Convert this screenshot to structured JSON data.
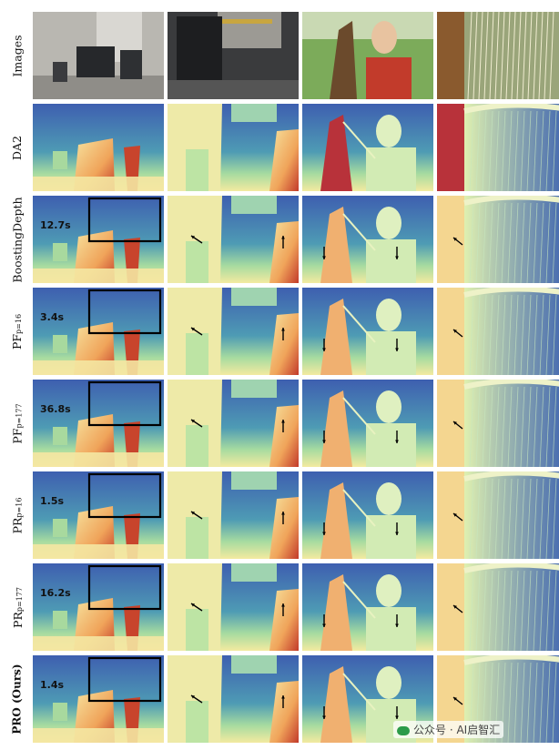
{
  "rows": [
    {
      "id": "images",
      "label": "Images",
      "sub": "",
      "time": ""
    },
    {
      "id": "da2",
      "label": "DA2",
      "sub": "",
      "time": ""
    },
    {
      "id": "boosting",
      "label": "BoostingDepth",
      "sub": "",
      "time": "12.7s"
    },
    {
      "id": "pf16",
      "label": "PF",
      "sub": "p=16",
      "time": "3.4s"
    },
    {
      "id": "pf177",
      "label": "PF",
      "sub": "p=177",
      "time": "36.8s"
    },
    {
      "id": "pr16",
      "label": "PR",
      "sub": "p=16",
      "time": "1.5s"
    },
    {
      "id": "pr177",
      "label": "PR",
      "sub": "p=177",
      "time": "16.2s"
    },
    {
      "id": "pro",
      "label": "PRO (Ours)",
      "sub": "",
      "time": "1.4s"
    }
  ],
  "columns": [
    "office-scene",
    "monitor-closeup",
    "harp-player",
    "harp-strings"
  ],
  "watermark": "公众号 · AI启智汇",
  "colors": {
    "far": "#3b55a8",
    "mid": "#7fcaa6",
    "near": "#f6e39a",
    "nearest": "#c23a2a"
  }
}
